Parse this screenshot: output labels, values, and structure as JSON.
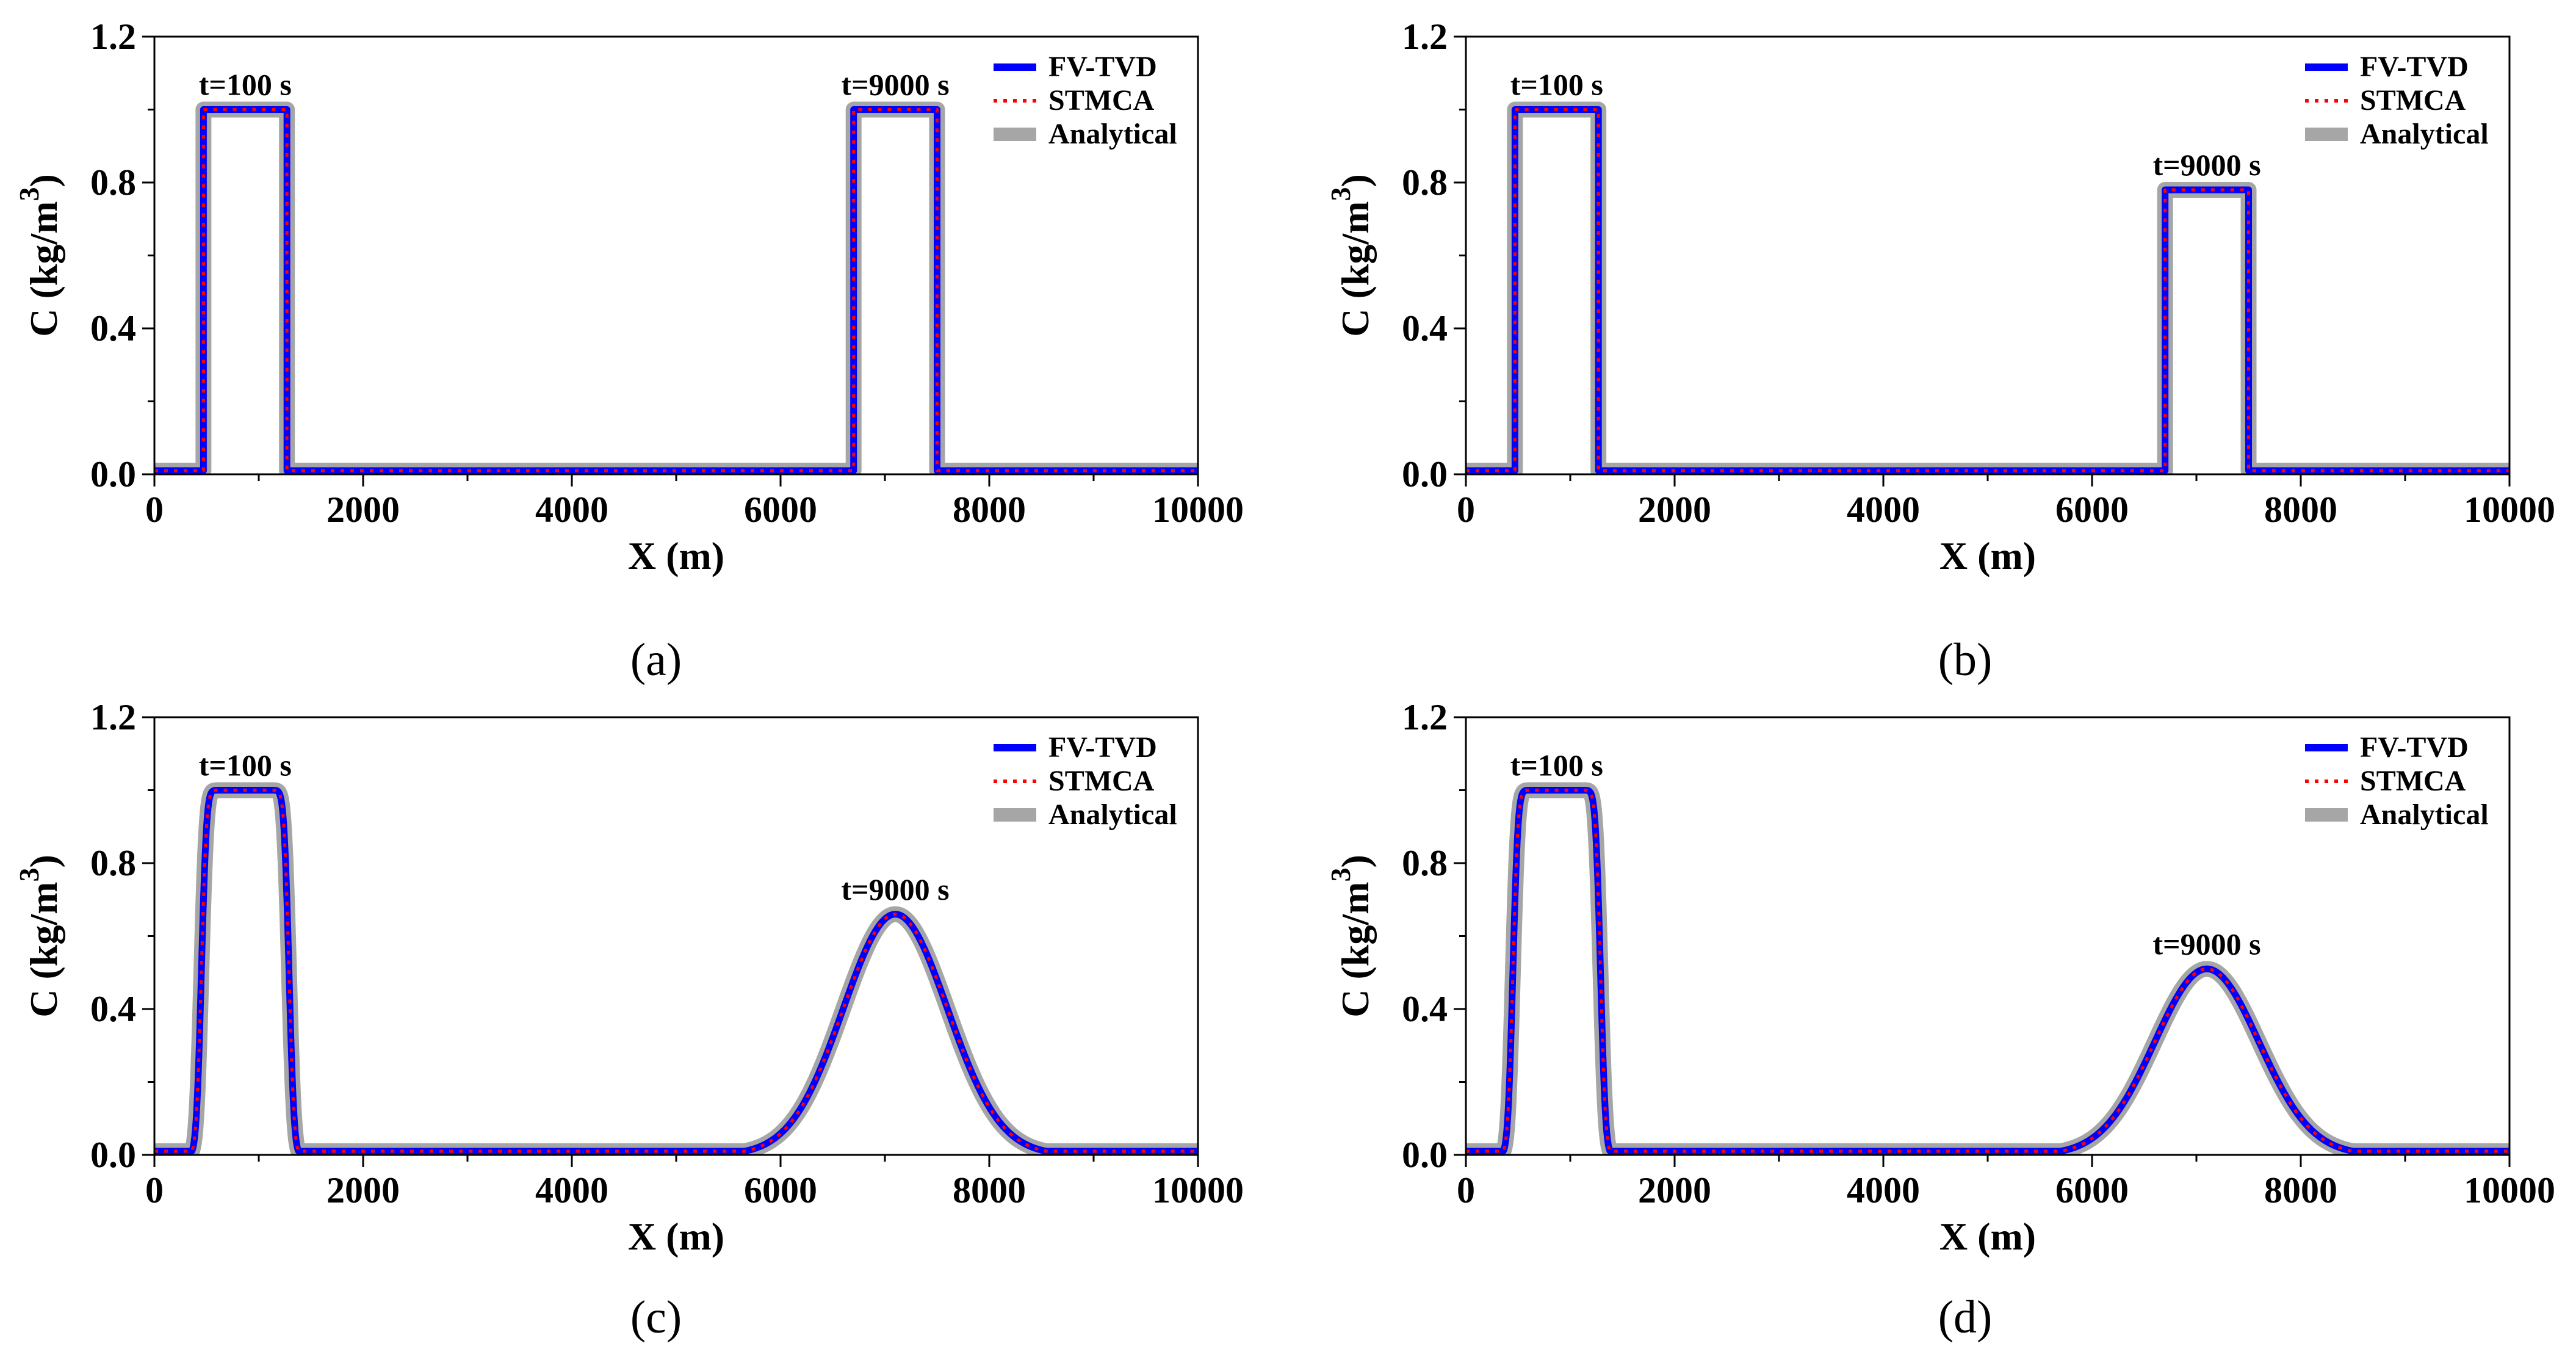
{
  "chart_data": [
    {
      "type": "line",
      "panel_label": "(a)",
      "xlabel": "X (m)",
      "ylabel_main": "C",
      "ylabel_unit": "(kg/m",
      "ylabel_exp": "3",
      "ylabel_close": ")",
      "xlim": [
        0,
        10000
      ],
      "ylim": [
        0.0,
        1.2
      ],
      "xticks": [
        0,
        2000,
        4000,
        6000,
        8000,
        10000
      ],
      "xtick_labels": [
        "0",
        "2000",
        "4000",
        "6000",
        "8000",
        "10000"
      ],
      "yticks": [
        0.0,
        0.4,
        0.8,
        1.2
      ],
      "ytick_labels": [
        "0.0",
        "0.4",
        "0.8",
        "1.2"
      ],
      "legend": [
        "FV-TVD",
        "STMCA",
        "Analytical"
      ],
      "series_colors": {
        "FV-TVD": "#0000ff",
        "STMCA": "#ff0000",
        "Analytical": "#a6a6a6"
      },
      "annotations": [
        {
          "text": "t=100 s",
          "x": 870,
          "y": 1.04
        },
        {
          "text": "t=9000 s",
          "x": 7100,
          "y": 1.04
        }
      ],
      "pulses": [
        {
          "time": "t=100 s",
          "shape": "rect",
          "x_start": 470,
          "x_end": 1270,
          "peak": 1.0
        },
        {
          "time": "t=9000 s",
          "shape": "rect",
          "x_start": 6700,
          "x_end": 7500,
          "peak": 1.0
        }
      ]
    },
    {
      "type": "line",
      "panel_label": "(b)",
      "xlabel": "X (m)",
      "ylabel_main": "C",
      "ylabel_unit": "(kg/m",
      "ylabel_exp": "3",
      "ylabel_close": ")",
      "xlim": [
        0,
        10000
      ],
      "ylim": [
        0.0,
        1.2
      ],
      "xticks": [
        0,
        2000,
        4000,
        6000,
        8000,
        10000
      ],
      "xtick_labels": [
        "0",
        "2000",
        "4000",
        "6000",
        "8000",
        "10000"
      ],
      "yticks": [
        0.0,
        0.4,
        0.8,
        1.2
      ],
      "ytick_labels": [
        "0.0",
        "0.4",
        "0.8",
        "1.2"
      ],
      "legend": [
        "FV-TVD",
        "STMCA",
        "Analytical"
      ],
      "series_colors": {
        "FV-TVD": "#0000ff",
        "STMCA": "#ff0000",
        "Analytical": "#a6a6a6"
      },
      "annotations": [
        {
          "text": "t=100 s",
          "x": 870,
          "y": 1.04
        },
        {
          "text": "t=9000 s",
          "x": 7100,
          "y": 0.82
        }
      ],
      "pulses": [
        {
          "time": "t=100 s",
          "shape": "rect",
          "x_start": 470,
          "x_end": 1270,
          "peak": 1.0
        },
        {
          "time": "t=9000 s",
          "shape": "rect",
          "x_start": 6700,
          "x_end": 7500,
          "peak": 0.78
        }
      ]
    },
    {
      "type": "line",
      "panel_label": "(c)",
      "xlabel": "X (m)",
      "ylabel_main": "C",
      "ylabel_unit": "(kg/m",
      "ylabel_exp": "3",
      "ylabel_close": ")",
      "xlim": [
        0,
        10000
      ],
      "ylim": [
        0.0,
        1.2
      ],
      "xticks": [
        0,
        2000,
        4000,
        6000,
        8000,
        10000
      ],
      "xtick_labels": [
        "0",
        "2000",
        "4000",
        "6000",
        "8000",
        "10000"
      ],
      "yticks": [
        0.0,
        0.4,
        0.8,
        1.2
      ],
      "ytick_labels": [
        "0.0",
        "0.4",
        "0.8",
        "1.2"
      ],
      "legend": [
        "FV-TVD",
        "STMCA",
        "Analytical"
      ],
      "series_colors": {
        "FV-TVD": "#0000ff",
        "STMCA": "#ff0000",
        "Analytical": "#a6a6a6"
      },
      "annotations": [
        {
          "text": "t=100 s",
          "x": 870,
          "y": 1.04
        },
        {
          "text": "t=9000 s",
          "x": 7100,
          "y": 0.7
        }
      ],
      "pulses": [
        {
          "time": "t=100 s",
          "shape": "smooth-rect",
          "x_start": 450,
          "x_end": 1290,
          "edge_width": 55,
          "peak": 1.0
        },
        {
          "time": "t=9000 s",
          "shape": "gaussian",
          "center": 7100,
          "sigma": 500,
          "peak": 0.66
        }
      ]
    },
    {
      "type": "line",
      "panel_label": "(d)",
      "xlabel": "X (m)",
      "ylabel_main": "C",
      "ylabel_unit": "(kg/m",
      "ylabel_exp": "3",
      "ylabel_close": ")",
      "xlim": [
        0,
        10000
      ],
      "ylim": [
        0.0,
        1.2
      ],
      "xticks": [
        0,
        2000,
        4000,
        6000,
        8000,
        10000
      ],
      "xtick_labels": [
        "0",
        "2000",
        "4000",
        "6000",
        "8000",
        "10000"
      ],
      "yticks": [
        0.0,
        0.4,
        0.8,
        1.2
      ],
      "ytick_labels": [
        "0.0",
        "0.4",
        "0.8",
        "1.2"
      ],
      "legend": [
        "FV-TVD",
        "STMCA",
        "Analytical"
      ],
      "series_colors": {
        "FV-TVD": "#0000ff",
        "STMCA": "#ff0000",
        "Analytical": "#a6a6a6"
      },
      "annotations": [
        {
          "text": "t=100 s",
          "x": 870,
          "y": 1.04
        },
        {
          "text": "t=9000 s",
          "x": 7100,
          "y": 0.55
        }
      ],
      "pulses": [
        {
          "time": "t=100 s",
          "shape": "smooth-rect",
          "x_start": 450,
          "x_end": 1290,
          "edge_width": 55,
          "peak": 1.0
        },
        {
          "time": "t=9000 s",
          "shape": "gaussian",
          "center": 7100,
          "sigma": 500,
          "peak": 0.51
        }
      ]
    }
  ]
}
